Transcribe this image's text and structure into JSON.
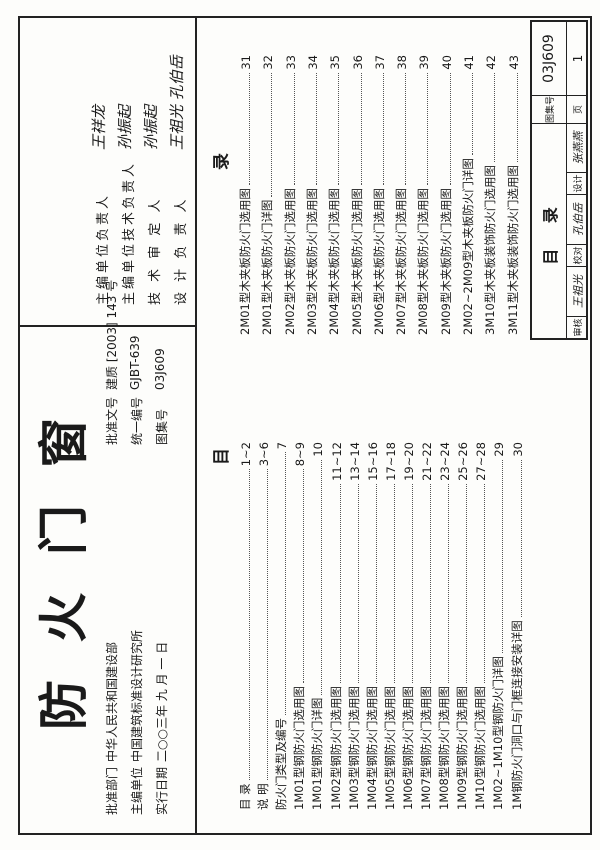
{
  "title": "防 火 门 窗",
  "approval": {
    "rows": [
      {
        "label": "批准部门",
        "value": "中华人民共和国建设部"
      },
      {
        "label": "主编单位",
        "value": "中国建筑标准设计研究所"
      },
      {
        "label": "实行日期",
        "value": "二○○三年 九 月 一 日"
      }
    ],
    "rows2": [
      {
        "label": "批准文号",
        "value": "建质 [2003] 143 号"
      },
      {
        "label": "统一编号",
        "value": "GJBT-639"
      },
      {
        "label": "图集号",
        "value": "03J609"
      }
    ]
  },
  "signatories": [
    {
      "label": "主编单位负责人",
      "signature": "王祥龙"
    },
    {
      "label": "主编单位技术负责人",
      "signature": "孙振起"
    },
    {
      "label": "技 术 审 定 人",
      "signature": "孙振起"
    },
    {
      "label": "设 计 负 责 人",
      "signature": "王祖光 孔伯岳"
    }
  ],
  "toc": {
    "heading_left": "目",
    "heading_right": "录",
    "left": [
      {
        "text": "目 录",
        "page": "1~2"
      },
      {
        "text": "说 明",
        "page": "3~6"
      },
      {
        "text": "防火门类型及编号",
        "page": "7"
      },
      {
        "text": "1M01型钢防火门选用图",
        "page": "8~9"
      },
      {
        "text": "1M01型钢防火门详图",
        "page": "10"
      },
      {
        "text": "1M02型钢防火门选用图",
        "page": "11~12"
      },
      {
        "text": "1M03型钢防火门选用图",
        "page": "13~14"
      },
      {
        "text": "1M04型钢防火门选用图",
        "page": "15~16"
      },
      {
        "text": "1M05型钢防火门选用图",
        "page": "17~18"
      },
      {
        "text": "1M06型钢防火门选用图",
        "page": "19~20"
      },
      {
        "text": "1M07型钢防火门选用图",
        "page": "21~22"
      },
      {
        "text": "1M08型钢防火门选用图",
        "page": "23~24"
      },
      {
        "text": "1M09型钢防火门选用图",
        "page": "25~26"
      },
      {
        "text": "1M10型钢防火门选用图",
        "page": "27~28"
      },
      {
        "text": "1M02~1M10型钢防火门详图",
        "page": "29"
      },
      {
        "text": "1M钢防火门洞口与门框连接安装详图",
        "page": "30"
      }
    ],
    "right": [
      {
        "text": "2M01型木夹板防火门选用图",
        "page": "31"
      },
      {
        "text": "2M01型木夹板防火门详图",
        "page": "32"
      },
      {
        "text": "2M02型木夹板防火门选用图",
        "page": "33"
      },
      {
        "text": "2M03型木夹板防火门选用图",
        "page": "34"
      },
      {
        "text": "2M04型木夹板防火门选用图",
        "page": "35"
      },
      {
        "text": "2M05型木夹板防火门选用图",
        "page": "36"
      },
      {
        "text": "2M06型木夹板防火门选用图",
        "page": "37"
      },
      {
        "text": "2M07型木夹板防火门选用图",
        "page": "38"
      },
      {
        "text": "2M08型木夹板防火门选用图",
        "page": "39"
      },
      {
        "text": "2M09型木夹板防火门选用图",
        "page": "40"
      },
      {
        "text": "2M02~2M09型木夹板防火门详图",
        "page": "41"
      },
      {
        "text": "3M10型木夹板装饰防火门选用图",
        "page": "42"
      },
      {
        "text": "3M11型木夹板装饰防火门选用图",
        "page": "43"
      }
    ]
  },
  "title_block": {
    "sheet_title": "目 录",
    "atlas_label": "图集号",
    "atlas_no": "03J609",
    "page_label": "页",
    "page_no": "1",
    "review_label": "审核",
    "review_sig": "王祖光",
    "check_label": "校对",
    "check_sig": "孔伯岳",
    "design_label": "设计",
    "design_sig": "张燕燕"
  }
}
